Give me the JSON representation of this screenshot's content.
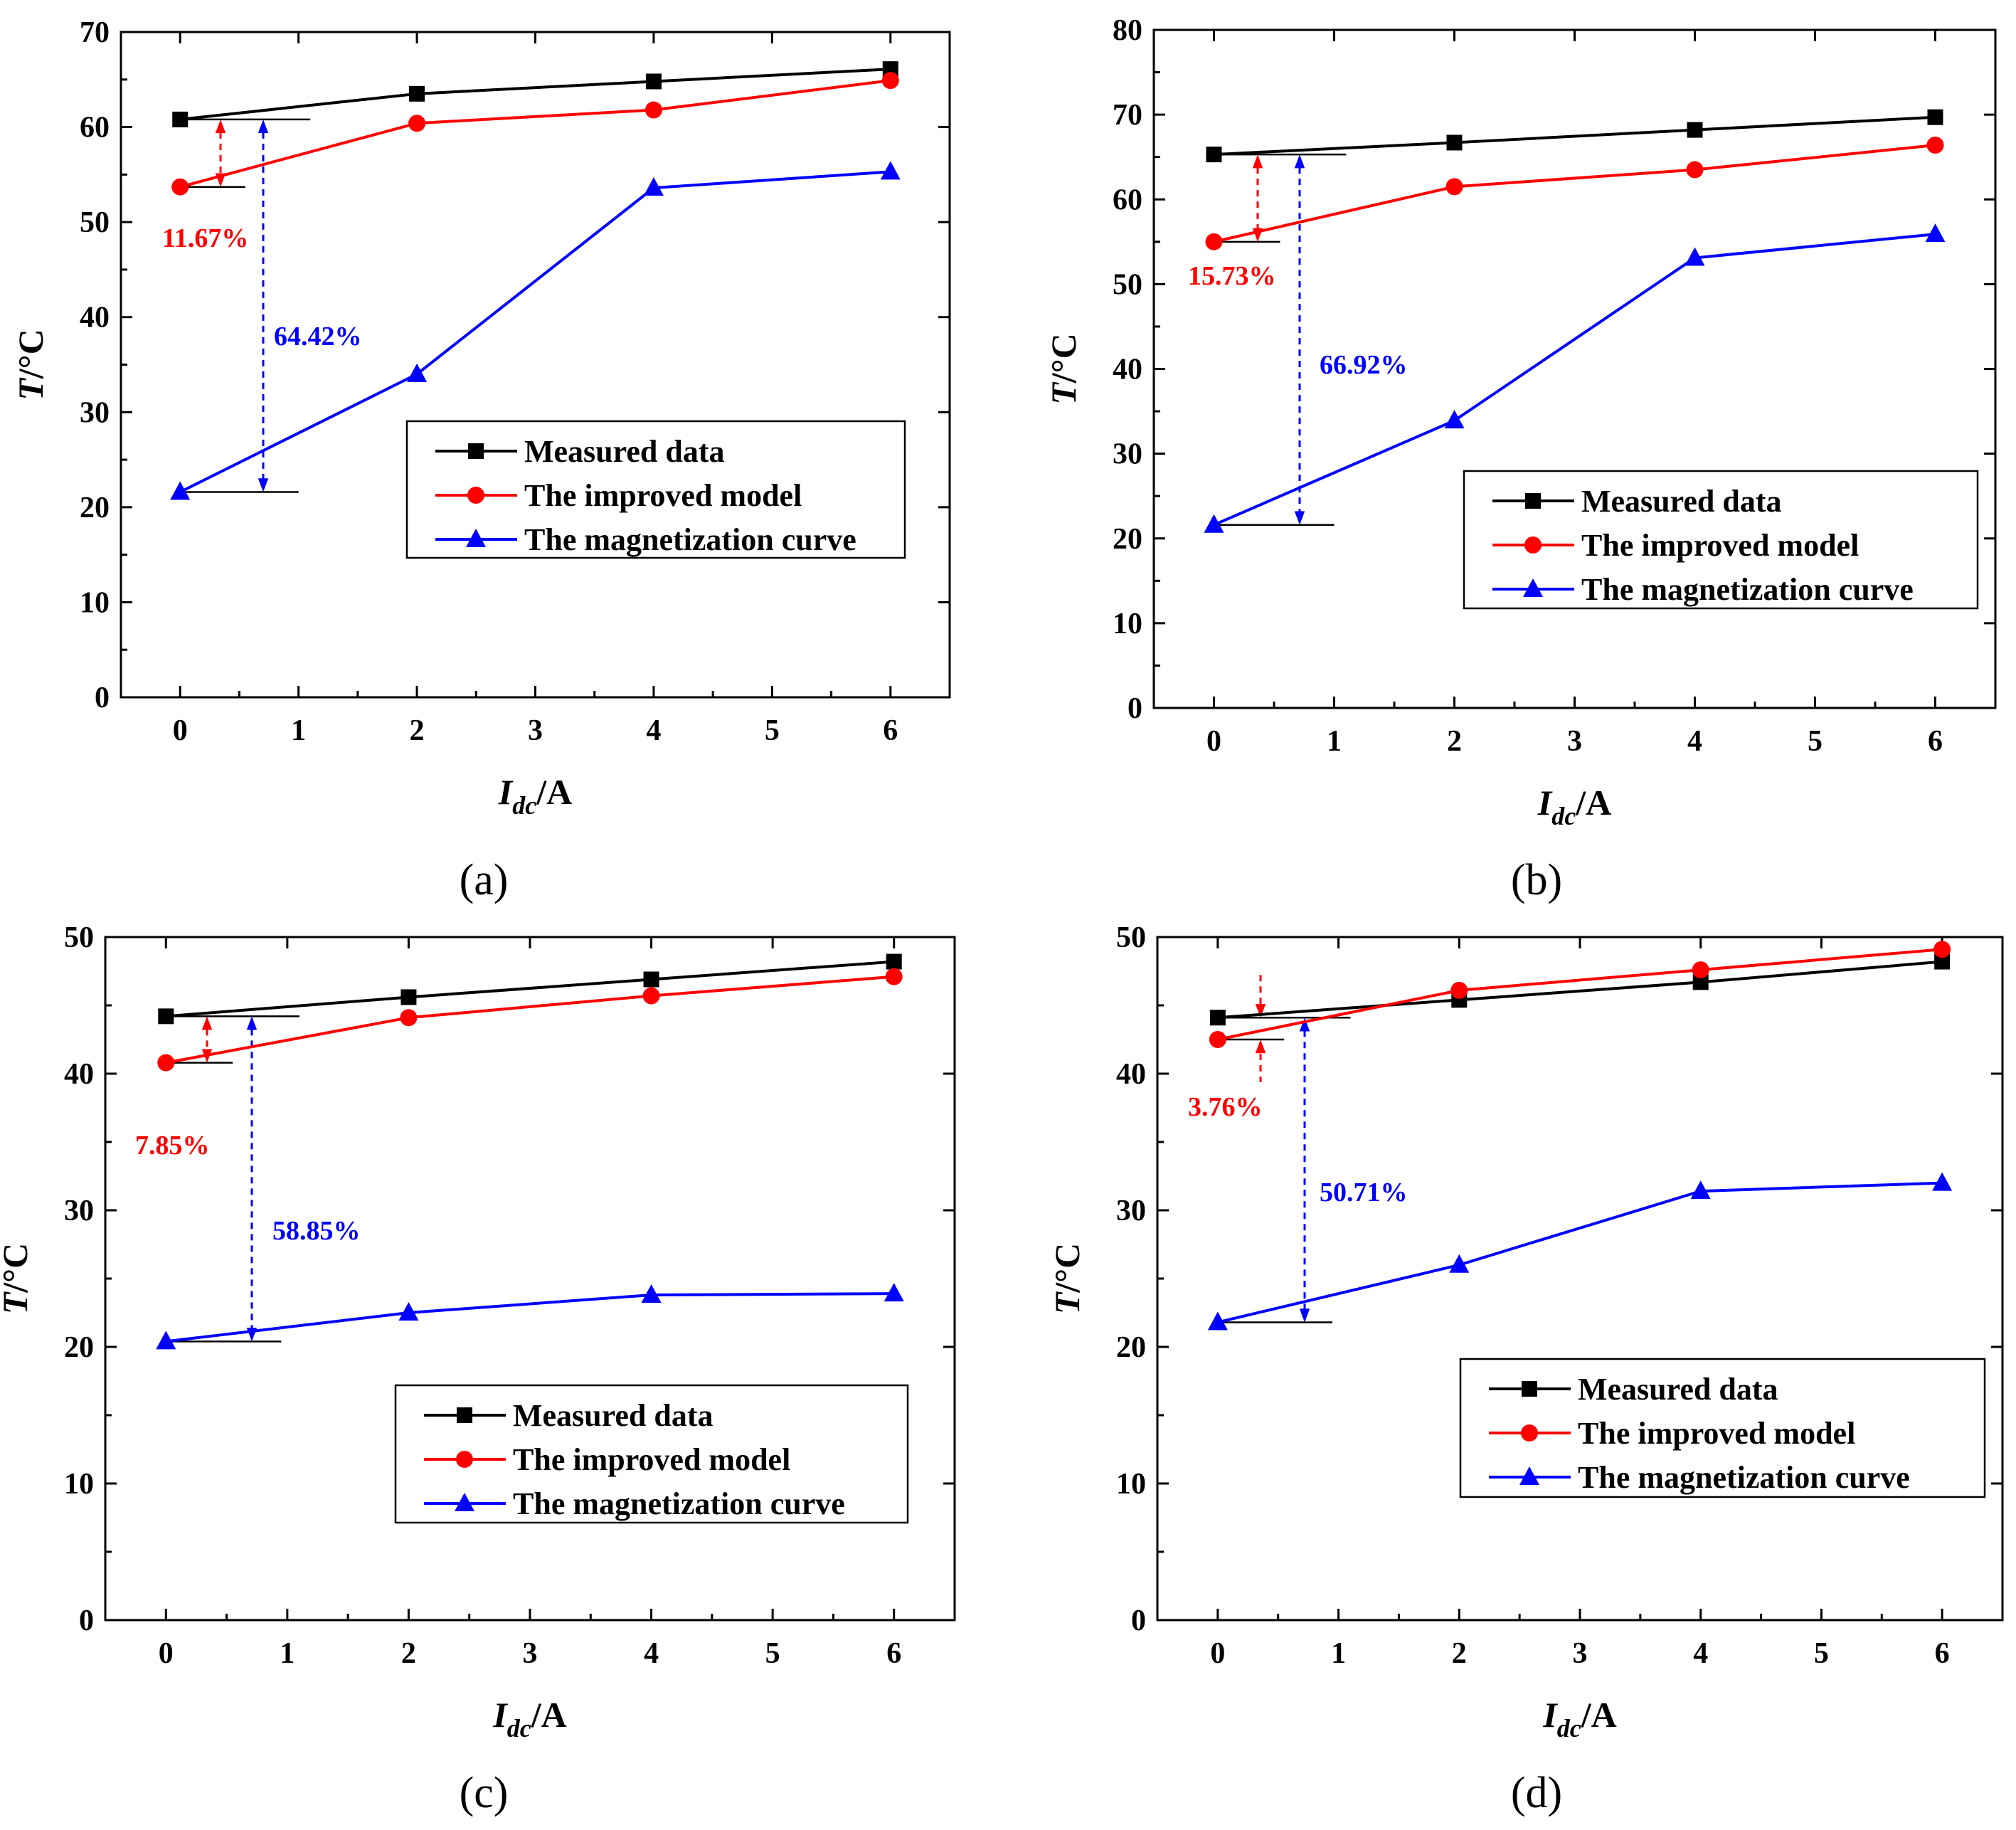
{
  "figure": {
    "panel_labels": [
      "(a)",
      "(b)",
      "(c)",
      "(d)"
    ]
  },
  "colors": {
    "measured": "#000000",
    "improved": "#ff0000",
    "magnetization": "#0000ff",
    "axis": "#000000"
  },
  "chart_data": [
    {
      "type": "line",
      "panel": "(a)",
      "xlabel_main": "I",
      "xlabel_sub": "dc",
      "xlabel_unit": "/A",
      "ylabel_main": "T",
      "ylabel_unit": "/°C",
      "xlim": [
        -0.5,
        6.5
      ],
      "ylim": [
        0,
        70
      ],
      "xticks": [
        0,
        1,
        2,
        3,
        4,
        5,
        6
      ],
      "yticks": [
        0,
        10,
        20,
        30,
        40,
        50,
        60,
        70
      ],
      "x": [
        0,
        2,
        4,
        6
      ],
      "series": [
        {
          "name": "Measured data",
          "marker": "square",
          "color": "#000000",
          "values": [
            60.8,
            63.5,
            64.8,
            66.1
          ]
        },
        {
          "name": "The improved model",
          "marker": "circle",
          "color": "#ff0000",
          "values": [
            53.7,
            60.4,
            61.8,
            64.9
          ]
        },
        {
          "name": "The magnetization curve",
          "marker": "triangle",
          "color": "#0000ff",
          "values": [
            21.6,
            34.0,
            53.6,
            55.3
          ]
        }
      ],
      "legend_position": "middle-right",
      "annotations": [
        {
          "text": "11.67%",
          "color": "#ff0000"
        },
        {
          "text": "64.42%",
          "color": "#0000ff"
        }
      ]
    },
    {
      "type": "line",
      "panel": "(b)",
      "xlabel_main": "I",
      "xlabel_sub": "dc",
      "xlabel_unit": "/A",
      "ylabel_main": "T",
      "ylabel_unit": "/°C",
      "xlim": [
        -0.5,
        6.5
      ],
      "ylim": [
        0,
        80
      ],
      "xticks": [
        0,
        1,
        2,
        3,
        4,
        5,
        6
      ],
      "yticks": [
        0,
        10,
        20,
        30,
        40,
        50,
        60,
        70,
        80
      ],
      "x": [
        0,
        2,
        4,
        6
      ],
      "series": [
        {
          "name": "Measured data",
          "marker": "square",
          "color": "#000000",
          "values": [
            65.3,
            66.7,
            68.2,
            69.7
          ]
        },
        {
          "name": "The improved model",
          "marker": "circle",
          "color": "#ff0000",
          "values": [
            55.0,
            61.5,
            63.5,
            66.4
          ]
        },
        {
          "name": "The magnetization curve",
          "marker": "triangle",
          "color": "#0000ff",
          "values": [
            21.6,
            33.9,
            53.1,
            55.9
          ]
        }
      ],
      "legend_position": "middle-right",
      "annotations": [
        {
          "text": "15.73%",
          "color": "#ff0000"
        },
        {
          "text": "66.92%",
          "color": "#0000ff"
        }
      ]
    },
    {
      "type": "line",
      "panel": "(c)",
      "xlabel_main": "I",
      "xlabel_sub": "dc",
      "xlabel_unit": "/A",
      "ylabel_main": "T",
      "ylabel_unit": "/°C",
      "xlim": [
        -0.5,
        6.5
      ],
      "ylim": [
        0,
        50
      ],
      "xticks": [
        0,
        1,
        2,
        3,
        4,
        5,
        6
      ],
      "yticks": [
        0,
        10,
        20,
        30,
        40,
        50
      ],
      "x": [
        0,
        2,
        4,
        6
      ],
      "series": [
        {
          "name": "Measured data",
          "marker": "square",
          "color": "#000000",
          "values": [
            44.2,
            45.6,
            46.9,
            48.2
          ]
        },
        {
          "name": "The improved model",
          "marker": "circle",
          "color": "#ff0000",
          "values": [
            40.8,
            44.1,
            45.7,
            47.1
          ]
        },
        {
          "name": "The magnetization curve",
          "marker": "triangle",
          "color": "#0000ff",
          "values": [
            20.4,
            22.5,
            23.8,
            23.9
          ]
        }
      ],
      "legend_position": "bottom-right",
      "annotations": [
        {
          "text": "7.85%",
          "color": "#ff0000"
        },
        {
          "text": "58.85%",
          "color": "#0000ff"
        }
      ]
    },
    {
      "type": "line",
      "panel": "(d)",
      "xlabel_main": "I",
      "xlabel_sub": "dc",
      "xlabel_unit": "/A",
      "ylabel_main": "T",
      "ylabel_unit": "/°C",
      "xlim": [
        -0.5,
        6.5
      ],
      "ylim": [
        0,
        50
      ],
      "xticks": [
        0,
        1,
        2,
        3,
        4,
        5,
        6
      ],
      "yticks": [
        0,
        10,
        20,
        30,
        40,
        50
      ],
      "x": [
        0,
        2,
        4,
        6
      ],
      "series": [
        {
          "name": "Measured data",
          "marker": "square",
          "color": "#000000",
          "values": [
            44.1,
            45.4,
            46.7,
            48.2
          ]
        },
        {
          "name": "The improved model",
          "marker": "circle",
          "color": "#ff0000",
          "values": [
            42.5,
            46.1,
            47.6,
            49.1
          ]
        },
        {
          "name": "The magnetization curve",
          "marker": "triangle",
          "color": "#0000ff",
          "values": [
            21.8,
            26.0,
            31.4,
            32.0
          ]
        }
      ],
      "legend_position": "bottom-right",
      "annotations": [
        {
          "text": "3.76%",
          "color": "#ff0000"
        },
        {
          "text": "50.71%",
          "color": "#0000ff"
        }
      ]
    }
  ]
}
